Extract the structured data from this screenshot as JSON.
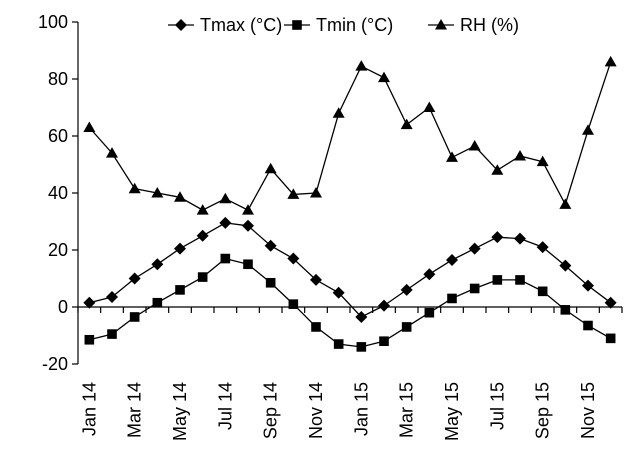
{
  "chart_data": {
    "type": "line",
    "categories": [
      "Jan 14",
      "Feb 14",
      "Mar 14",
      "Apr 14",
      "May 14",
      "Jun 14",
      "Jul 14",
      "Aug 14",
      "Sep 14",
      "Oct 14",
      "Nov 14",
      "Dec 14",
      "Jan 15",
      "Feb 15",
      "Mar 15",
      "Apr 15",
      "May 15",
      "Jun 15",
      "Jul 15",
      "Aug 15",
      "Sep 15",
      "Oct 15",
      "Nov 15",
      "Dec 15"
    ],
    "x_tick_labels": [
      "Jan 14",
      "Mar 14",
      "May 14",
      "Jul 14",
      "Sep 14",
      "Nov 14",
      "Jan 15",
      "Mar 15",
      "May 15",
      "Jul 15",
      "Sep 15",
      "Nov 15"
    ],
    "ylim": [
      -20,
      100
    ],
    "y_ticks": [
      -20,
      0,
      20,
      40,
      60,
      80,
      100
    ],
    "grid": false,
    "legend_position": "top",
    "series": [
      {
        "name": "Tmax (°C)",
        "marker": "diamond-icon",
        "values": [
          1.5,
          3.5,
          10,
          15,
          20.5,
          25,
          29.5,
          28.5,
          21.5,
          17,
          9.5,
          5,
          -3.5,
          0.5,
          6,
          11.5,
          16.5,
          20.5,
          24.5,
          24,
          21,
          14.5,
          7.5,
          1.5
        ]
      },
      {
        "name": "Tmin (°C)",
        "marker": "square-icon",
        "values": [
          -11.5,
          -9.5,
          -3.5,
          1.5,
          6,
          10.5,
          17,
          15,
          8.5,
          1,
          -7,
          -13,
          -14,
          -12,
          -7,
          -2,
          3,
          6.5,
          9.5,
          9.5,
          5.5,
          -1,
          -6.5,
          -11
        ]
      },
      {
        "name": "RH (%)",
        "marker": "triangle-icon",
        "values": [
          63,
          54,
          41.5,
          40,
          38.5,
          34,
          38,
          34,
          48.5,
          39.5,
          40,
          68,
          84.5,
          80.5,
          64,
          70,
          52.5,
          56.5,
          48,
          53,
          51,
          36,
          62,
          86
        ]
      }
    ]
  }
}
